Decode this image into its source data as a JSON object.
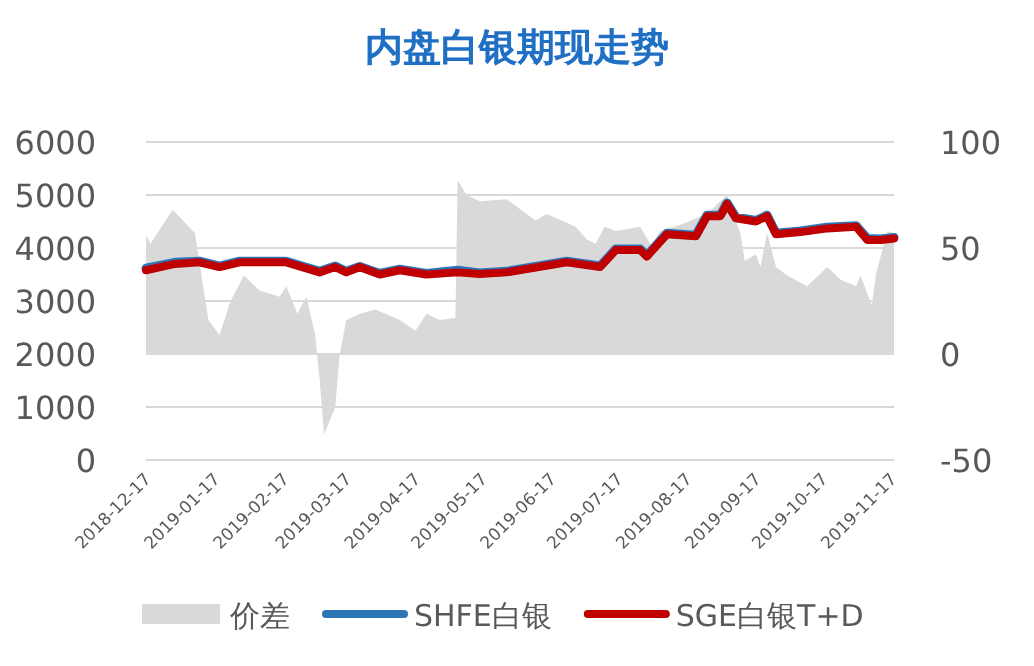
{
  "chart_data": {
    "type": "line",
    "title": "内盘白银期现走势",
    "x": [
      "2018-12-17",
      "2018-12-19",
      "2018-12-29",
      "2019-01-08",
      "2019-01-14",
      "2019-01-19",
      "2019-01-24",
      "2019-01-30",
      "2019-02-06",
      "2019-02-15",
      "2019-02-18",
      "2019-02-23",
      "2019-02-27",
      "2019-03-03",
      "2019-03-05",
      "2019-03-07",
      "2019-03-12",
      "2019-03-14",
      "2019-03-17",
      "2019-03-23",
      "2019-03-30",
      "2019-04-10",
      "2019-04-17",
      "2019-04-22",
      "2019-04-28",
      "2019-05-05",
      "2019-05-06",
      "2019-05-10",
      "2019-05-16",
      "2019-05-28",
      "2019-06-10",
      "2019-06-15",
      "2019-06-28",
      "2019-07-03",
      "2019-07-07",
      "2019-07-11",
      "2019-07-16",
      "2019-07-27",
      "2019-08-01",
      "2019-08-05",
      "2019-08-14",
      "2019-08-26",
      "2019-09-04",
      "2019-09-10",
      "2019-09-12",
      "2019-09-17",
      "2019-09-19",
      "2019-09-22",
      "2019-09-26",
      "2019-10-01",
      "2019-10-10",
      "2019-10-19",
      "2019-10-25",
      "2019-11-01",
      "2019-11-03",
      "2019-11-08",
      "2019-11-10",
      "2019-11-15",
      "2019-11-18"
    ],
    "series": [
      {
        "name": "价差",
        "type": "area",
        "axis": "y2",
        "color": "#d9d9d9",
        "values": [
          56,
          52,
          68,
          57,
          16,
          9,
          25,
          37,
          30,
          27,
          32,
          19,
          27,
          9,
          -12,
          -38,
          -25,
          0,
          16,
          19,
          21,
          16,
          11,
          19,
          16,
          17,
          82,
          75,
          72,
          73,
          63,
          66,
          60,
          54,
          52,
          60,
          58,
          60,
          51,
          58,
          61,
          66,
          75,
          57,
          44,
          47,
          41,
          57,
          41,
          37,
          32,
          41,
          35,
          32,
          37,
          23,
          38,
          58,
          57
        ]
      },
      {
        "name": "SHFE白银",
        "color": "#2e75b6",
        "x": [
          "2018-12-17",
          "2018-12-30",
          "2019-01-10",
          "2019-01-19",
          "2019-01-28",
          "2019-02-18",
          "2019-03-05",
          "2019-03-12",
          "2019-03-17",
          "2019-03-23",
          "2019-04-01",
          "2019-04-10",
          "2019-04-22",
          "2019-05-06",
          "2019-05-16",
          "2019-05-28",
          "2019-06-24",
          "2019-07-09",
          "2019-07-16",
          "2019-07-27",
          "2019-07-30",
          "2019-08-08",
          "2019-08-21",
          "2019-08-26",
          "2019-09-01",
          "2019-09-04",
          "2019-09-08",
          "2019-09-17",
          "2019-09-22",
          "2019-09-26",
          "2019-10-07",
          "2019-10-19",
          "2019-11-01",
          "2019-11-06",
          "2019-11-12",
          "2019-11-18"
        ],
        "values": [
          3620,
          3730,
          3750,
          3660,
          3750,
          3750,
          3560,
          3660,
          3560,
          3650,
          3520,
          3600,
          3520,
          3580,
          3530,
          3560,
          3750,
          3660,
          3980,
          3980,
          3860,
          4280,
          4240,
          4620,
          4620,
          4850,
          4580,
          4520,
          4620,
          4280,
          4320,
          4390,
          4420,
          4180,
          4170,
          4200
        ]
      },
      {
        "name": "SGE白银T+D",
        "color": "#c00000",
        "x": [
          "2018-12-17",
          "2018-12-30",
          "2019-01-10",
          "2019-01-19",
          "2019-01-28",
          "2019-02-18",
          "2019-03-05",
          "2019-03-12",
          "2019-03-17",
          "2019-03-23",
          "2019-04-01",
          "2019-04-10",
          "2019-04-22",
          "2019-05-06",
          "2019-05-16",
          "2019-05-28",
          "2019-06-24",
          "2019-07-09",
          "2019-07-16",
          "2019-07-27",
          "2019-07-30",
          "2019-08-08",
          "2019-08-21",
          "2019-08-26",
          "2019-09-01",
          "2019-09-04",
          "2019-09-08",
          "2019-09-17",
          "2019-09-22",
          "2019-09-26",
          "2019-10-07",
          "2019-10-19",
          "2019-11-01",
          "2019-11-06",
          "2019-11-12",
          "2019-11-18"
        ],
        "values": [
          3580,
          3700,
          3730,
          3640,
          3730,
          3730,
          3540,
          3640,
          3540,
          3640,
          3500,
          3580,
          3500,
          3540,
          3510,
          3540,
          3730,
          3640,
          3960,
          3960,
          3840,
          4260,
          4220,
          4600,
          4600,
          4830,
          4560,
          4500,
          4600,
          4260,
          4300,
          4370,
          4400,
          4150,
          4150,
          4180
        ]
      }
    ],
    "xlim": [
      "2018-12-17",
      "2019-11-18"
    ],
    "xticks": [
      "2018-12-17",
      "2019-01-17",
      "2019-02-17",
      "2019-03-17",
      "2019-04-17",
      "2019-05-17",
      "2019-06-17",
      "2019-07-17",
      "2019-08-17",
      "2019-09-17",
      "2019-10-17",
      "2019-11-17"
    ],
    "ylim": [
      0,
      6000
    ],
    "yticks": [
      0,
      1000,
      2000,
      3000,
      4000,
      5000,
      6000
    ],
    "y2lim": [
      -50,
      100
    ],
    "y2ticks": [
      -50,
      0,
      50,
      100
    ],
    "grid": "y",
    "legend": "bottom"
  }
}
